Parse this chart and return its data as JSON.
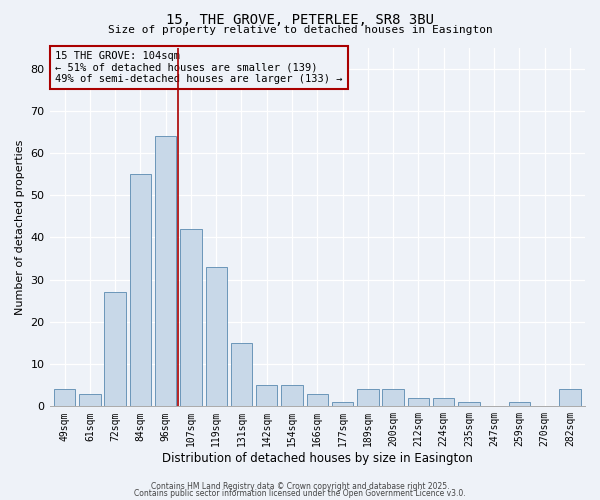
{
  "title": "15, THE GROVE, PETERLEE, SR8 3BU",
  "subtitle": "Size of property relative to detached houses in Easington",
  "xlabel": "Distribution of detached houses by size in Easington",
  "ylabel": "Number of detached properties",
  "bar_labels": [
    "49sqm",
    "61sqm",
    "72sqm",
    "84sqm",
    "96sqm",
    "107sqm",
    "119sqm",
    "131sqm",
    "142sqm",
    "154sqm",
    "166sqm",
    "177sqm",
    "189sqm",
    "200sqm",
    "212sqm",
    "224sqm",
    "235sqm",
    "247sqm",
    "259sqm",
    "270sqm",
    "282sqm"
  ],
  "bar_heights": [
    4,
    3,
    27,
    55,
    64,
    42,
    33,
    15,
    5,
    5,
    3,
    1,
    4,
    4,
    2,
    2,
    1,
    0,
    1,
    0,
    4
  ],
  "bar_color": "#c8d8e8",
  "bar_edgecolor": "#5a8ab0",
  "ylim": [
    0,
    85
  ],
  "yticks": [
    0,
    10,
    20,
    30,
    40,
    50,
    60,
    70,
    80
  ],
  "vline_color": "#aa0000",
  "annotation_text": "15 THE GROVE: 104sqm\n← 51% of detached houses are smaller (139)\n49% of semi-detached houses are larger (133) →",
  "bg_color": "#eef2f8",
  "footer1": "Contains HM Land Registry data © Crown copyright and database right 2025.",
  "footer2": "Contains public sector information licensed under the Open Government Licence v3.0."
}
